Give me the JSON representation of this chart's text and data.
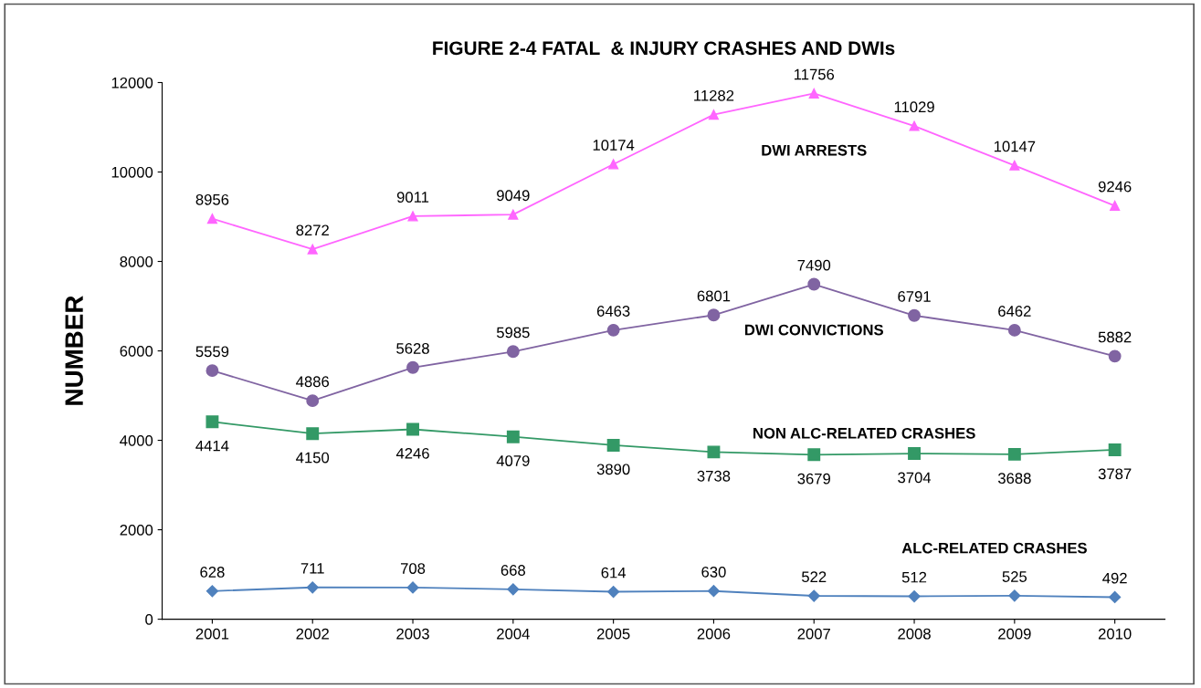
{
  "chart_data": {
    "type": "line",
    "title": "FIGURE 2-4 FATAL  & INJURY CRASHES AND DWIs",
    "ylabel": "NUMBER",
    "categories": [
      "2001",
      "2002",
      "2003",
      "2004",
      "2005",
      "2006",
      "2007",
      "2008",
      "2009",
      "2010"
    ],
    "series": [
      {
        "name": "DWI ARRESTS",
        "color": "#ff66ff",
        "marker": "triangle",
        "values": [
          8956,
          8272,
          9011,
          9049,
          10174,
          11282,
          11756,
          11029,
          10147,
          9246
        ]
      },
      {
        "name": "DWI CONVICTIONS",
        "color": "#8064a2",
        "marker": "circle",
        "values": [
          5559,
          4886,
          5628,
          5985,
          6463,
          6801,
          7490,
          6791,
          6462,
          5882
        ]
      },
      {
        "name": "NON ALC-RELATED CRASHES",
        "color": "#339966",
        "marker": "square",
        "values": [
          4414,
          4150,
          4246,
          4079,
          3890,
          3738,
          3679,
          3704,
          3688,
          3787
        ]
      },
      {
        "name": "ALC-RELATED CRASHES",
        "color": "#4f81bd",
        "marker": "diamond",
        "values": [
          628,
          711,
          708,
          668,
          614,
          630,
          522,
          512,
          525,
          492
        ]
      }
    ],
    "ylim": [
      0,
      12000
    ],
    "yticks": [
      0,
      2000,
      4000,
      6000,
      8000,
      10000,
      12000
    ],
    "grid": false,
    "legend": false,
    "data_labels": true
  }
}
